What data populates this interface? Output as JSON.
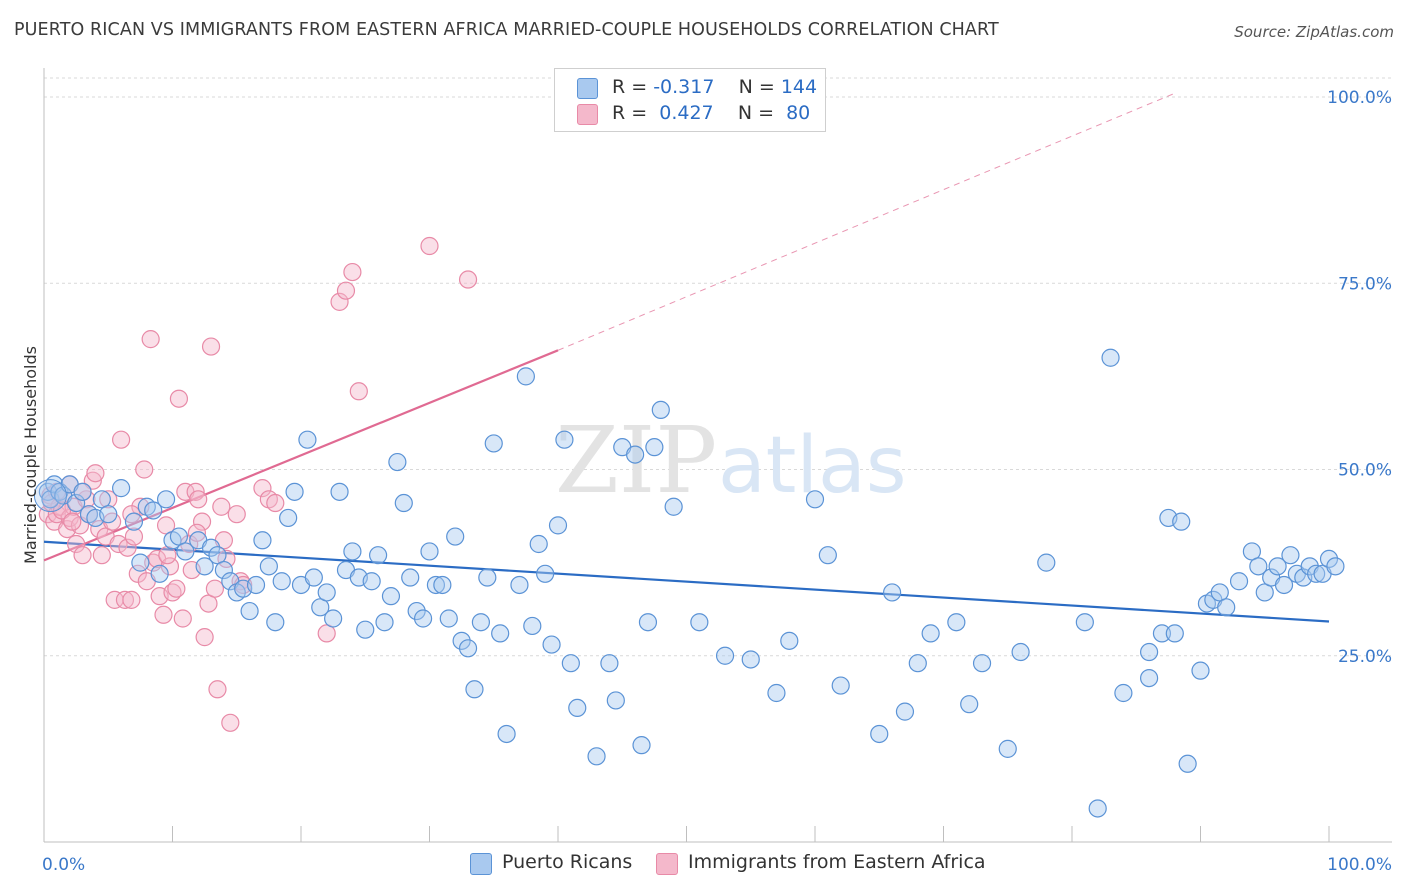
{
  "header": {
    "title": "PUERTO RICAN VS IMMIGRANTS FROM EASTERN AFRICA MARRIED-COUPLE HOUSEHOLDS CORRELATION CHART",
    "source": "Source: ZipAtlas.com"
  },
  "watermark": {
    "zip": "ZIP",
    "atlas": "atlas"
  },
  "legend_top": {
    "rows": [
      {
        "r_label": "R = ",
        "r_value": "-0.317",
        "n_label": "N = ",
        "n_value": "144"
      },
      {
        "r_label": "R = ",
        "r_value": " 0.427",
        "n_label": "N = ",
        "n_value": " 80"
      }
    ]
  },
  "legend_bottom": {
    "series1": "Puerto Ricans",
    "series2": "Immigrants from Eastern Africa"
  },
  "colors": {
    "blue_fill": "#a9c9ef",
    "blue_stroke": "#5b93d6",
    "blue_line": "#2b6cc4",
    "pink_fill": "#f4b8cb",
    "pink_stroke": "#e88aa7",
    "pink_line": "#e06a92",
    "grid": "#d9d9d9",
    "tick_text": "#3a78c9"
  },
  "chart_data": {
    "type": "scatter",
    "title": "PUERTO RICAN VS IMMIGRANTS FROM EASTERN AFRICA MARRIED-COUPLE HOUSEHOLDS CORRELATION CHART",
    "xlabel": "",
    "ylabel": "Married-couple Households",
    "xlim": [
      0,
      100
    ],
    "ylim": [
      0,
      105
    ],
    "x_tick_labels": [
      "0.0%",
      "100.0%"
    ],
    "y_ticks": [
      25,
      50,
      75,
      100
    ],
    "y_tick_labels": [
      "25.0%",
      "50.0%",
      "75.0%",
      "100.0%"
    ],
    "grid": "horizontal dashed",
    "legend_position": "top-center",
    "series": [
      {
        "name": "Puerto Ricans",
        "r": -0.317,
        "n": 144,
        "trend": {
          "x": [
            0,
            100
          ],
          "y": [
            40.3,
            29.6
          ]
        },
        "points": [
          [
            0.3,
            47
          ],
          [
            0.5,
            46
          ],
          [
            0.8,
            48
          ],
          [
            1.2,
            47
          ],
          [
            1.5,
            46.5
          ],
          [
            2,
            48
          ],
          [
            2.5,
            45.5
          ],
          [
            3,
            47
          ],
          [
            3.5,
            44
          ],
          [
            4,
            43.5
          ],
          [
            4.5,
            46
          ],
          [
            5,
            44
          ],
          [
            6,
            47.5
          ],
          [
            7,
            43
          ],
          [
            7.5,
            37.5
          ],
          [
            8,
            45
          ],
          [
            8.5,
            44.5
          ],
          [
            9,
            36
          ],
          [
            9.5,
            46
          ],
          [
            10,
            40.5
          ],
          [
            10.5,
            41
          ],
          [
            11,
            39
          ],
          [
            12,
            40.5
          ],
          [
            12.5,
            37
          ],
          [
            13,
            39.5
          ],
          [
            13.5,
            38.5
          ],
          [
            14,
            36.5
          ],
          [
            14.5,
            35
          ],
          [
            15,
            33.5
          ],
          [
            15.5,
            34
          ],
          [
            16,
            31
          ],
          [
            16.5,
            34.5
          ],
          [
            17,
            40.5
          ],
          [
            17.5,
            37
          ],
          [
            18,
            29.5
          ],
          [
            18.5,
            35
          ],
          [
            19,
            43.5
          ],
          [
            19.5,
            47
          ],
          [
            20,
            34.5
          ],
          [
            20.5,
            54
          ],
          [
            21,
            35.5
          ],
          [
            21.5,
            31.5
          ],
          [
            22,
            33.5
          ],
          [
            22.5,
            30
          ],
          [
            23,
            47
          ],
          [
            23.5,
            36.5
          ],
          [
            24,
            39
          ],
          [
            24.5,
            35.5
          ],
          [
            25,
            28.5
          ],
          [
            25.5,
            35
          ],
          [
            26,
            38.5
          ],
          [
            26.5,
            29.5
          ],
          [
            27,
            33
          ],
          [
            27.5,
            51
          ],
          [
            28,
            45.5
          ],
          [
            28.5,
            35.5
          ],
          [
            29,
            31
          ],
          [
            29.5,
            30
          ],
          [
            30,
            39
          ],
          [
            30.5,
            34.5
          ],
          [
            31,
            34.5
          ],
          [
            31.5,
            30
          ],
          [
            32,
            41
          ],
          [
            32.5,
            27
          ],
          [
            33,
            26
          ],
          [
            33.5,
            20.5
          ],
          [
            34,
            29.5
          ],
          [
            34.5,
            35.5
          ],
          [
            35,
            53.5
          ],
          [
            35.5,
            28
          ],
          [
            36,
            14.5
          ],
          [
            37,
            34.5
          ],
          [
            37.5,
            62.5
          ],
          [
            38,
            29
          ],
          [
            38.5,
            40
          ],
          [
            39,
            36
          ],
          [
            39.5,
            26.5
          ],
          [
            40,
            42.5
          ],
          [
            40.5,
            54
          ],
          [
            41,
            24
          ],
          [
            41.5,
            18
          ],
          [
            43,
            11.5
          ],
          [
            44,
            24
          ],
          [
            44.5,
            19
          ],
          [
            45,
            53
          ],
          [
            46,
            52
          ],
          [
            46.5,
            13
          ],
          [
            47,
            29.5
          ],
          [
            47.5,
            53
          ],
          [
            48,
            58
          ],
          [
            49,
            45
          ],
          [
            51,
            29.5
          ],
          [
            53,
            25
          ],
          [
            55,
            24.5
          ],
          [
            57,
            20
          ],
          [
            58,
            27
          ],
          [
            60,
            46
          ],
          [
            61,
            38.5
          ],
          [
            62,
            21
          ],
          [
            65,
            14.5
          ],
          [
            66,
            33.5
          ],
          [
            67,
            17.5
          ],
          [
            68,
            24
          ],
          [
            69,
            28
          ],
          [
            71,
            29.5
          ],
          [
            72,
            18.5
          ],
          [
            73,
            24
          ],
          [
            75,
            12.5
          ],
          [
            76,
            25.5
          ],
          [
            78,
            37.5
          ],
          [
            81,
            29.5
          ],
          [
            82,
            4.5
          ],
          [
            83,
            65
          ],
          [
            84,
            20
          ],
          [
            86,
            22
          ],
          [
            86,
            25.5
          ],
          [
            87,
            28
          ],
          [
            87.5,
            43.5
          ],
          [
            88,
            28
          ],
          [
            88.5,
            43
          ],
          [
            89,
            10.5
          ],
          [
            90,
            23
          ],
          [
            90.5,
            32
          ],
          [
            91,
            32.5
          ],
          [
            91.5,
            33.5
          ],
          [
            92,
            31.5
          ],
          [
            93,
            35
          ],
          [
            94,
            39
          ],
          [
            94.5,
            37
          ],
          [
            95,
            33.5
          ],
          [
            95.5,
            35.5
          ],
          [
            96,
            37
          ],
          [
            96.5,
            34.5
          ],
          [
            97,
            38.5
          ],
          [
            97.5,
            36
          ],
          [
            98,
            35.5
          ],
          [
            98.5,
            37
          ],
          [
            99,
            36
          ],
          [
            99.5,
            36
          ],
          [
            100,
            38
          ],
          [
            100.5,
            37
          ]
        ]
      },
      {
        "name": "Immigrants from Eastern Africa",
        "r": 0.427,
        "n": 80,
        "trend": {
          "x": [
            0,
            40
          ],
          "y": [
            37.8,
            66
          ]
        },
        "trend_extension": {
          "x": [
            40,
            88
          ],
          "y": [
            66,
            100.5
          ]
        },
        "points": [
          [
            0.3,
            44
          ],
          [
            0.5,
            46.5
          ],
          [
            0.8,
            43
          ],
          [
            1,
            44
          ],
          [
            1.2,
            45
          ],
          [
            1.5,
            46.5
          ],
          [
            1.8,
            42
          ],
          [
            2,
            43.5
          ],
          [
            2.3,
            45
          ],
          [
            2.5,
            40
          ],
          [
            2.8,
            42.5
          ],
          [
            3,
            38.5
          ],
          [
            3.3,
            46
          ],
          [
            3.5,
            44
          ],
          [
            3.8,
            48.5
          ],
          [
            4,
            49.5
          ],
          [
            4.3,
            42
          ],
          [
            4.5,
            38.5
          ],
          [
            4.8,
            41
          ],
          [
            5,
            46
          ],
          [
            5.3,
            43
          ],
          [
            5.5,
            32.5
          ],
          [
            5.8,
            40
          ],
          [
            6,
            54
          ],
          [
            6.3,
            32.5
          ],
          [
            6.5,
            39.5
          ],
          [
            6.8,
            32.5
          ],
          [
            7,
            41
          ],
          [
            7.3,
            36
          ],
          [
            7.5,
            45
          ],
          [
            7.8,
            50
          ],
          [
            8,
            35
          ],
          [
            8.3,
            67.5
          ],
          [
            8.5,
            37.5
          ],
          [
            8.8,
            38
          ],
          [
            9,
            33
          ],
          [
            9.3,
            30.5
          ],
          [
            9.5,
            42.5
          ],
          [
            9.8,
            37
          ],
          [
            10,
            33.5
          ],
          [
            10.3,
            34
          ],
          [
            10.5,
            59.5
          ],
          [
            10.8,
            30
          ],
          [
            11,
            47
          ],
          [
            11.3,
            40
          ],
          [
            11.5,
            36.5
          ],
          [
            11.8,
            47
          ],
          [
            12,
            46
          ],
          [
            12.3,
            43
          ],
          [
            12.5,
            27.5
          ],
          [
            12.8,
            32
          ],
          [
            13,
            66.5
          ],
          [
            13.3,
            34
          ],
          [
            13.5,
            20.5
          ],
          [
            13.8,
            45
          ],
          [
            14,
            40.5
          ],
          [
            14.5,
            16
          ],
          [
            15,
            44
          ],
          [
            15.3,
            35
          ],
          [
            15.5,
            34.5
          ],
          [
            17,
            47.5
          ],
          [
            17.5,
            46
          ],
          [
            18,
            45.5
          ],
          [
            22,
            28
          ],
          [
            23,
            72.5
          ],
          [
            23.5,
            74
          ],
          [
            24,
            76.5
          ],
          [
            24.5,
            60.5
          ],
          [
            30,
            80
          ],
          [
            33,
            75.5
          ],
          [
            2,
            48
          ],
          [
            3,
            47
          ],
          [
            1,
            47
          ],
          [
            0.6,
            45.5
          ],
          [
            1.4,
            44.5
          ],
          [
            2.2,
            43
          ],
          [
            6.8,
            44
          ],
          [
            9.6,
            38.5
          ],
          [
            11.9,
            41.5
          ],
          [
            14.2,
            38
          ]
        ]
      }
    ]
  }
}
